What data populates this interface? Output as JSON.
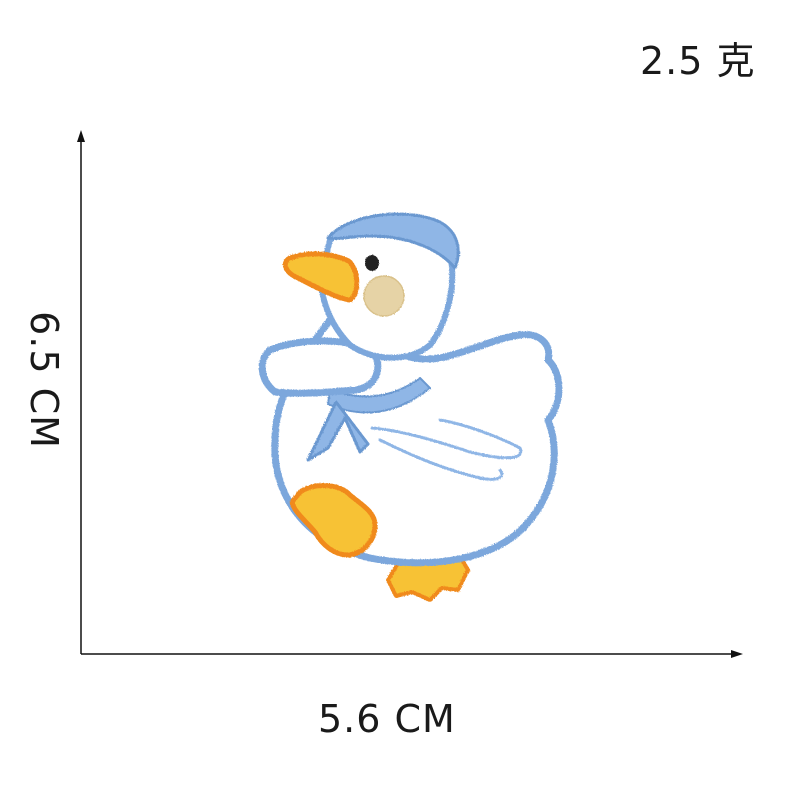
{
  "weight_label": "2.5 克",
  "dimensions": {
    "width_label": "5.6 CM",
    "height_label": "6.5 CM"
  },
  "image": {
    "subject": "embroidered-duck-patch",
    "colors": {
      "outline": "#7ba7dc",
      "sailor_collar": "#8fb6e6",
      "body": "#ffffff",
      "beak_feet": "#f7c235",
      "beak_feet_edge": "#f08a1c",
      "cheek": "#e6d3a6",
      "eye": "#222222"
    }
  }
}
